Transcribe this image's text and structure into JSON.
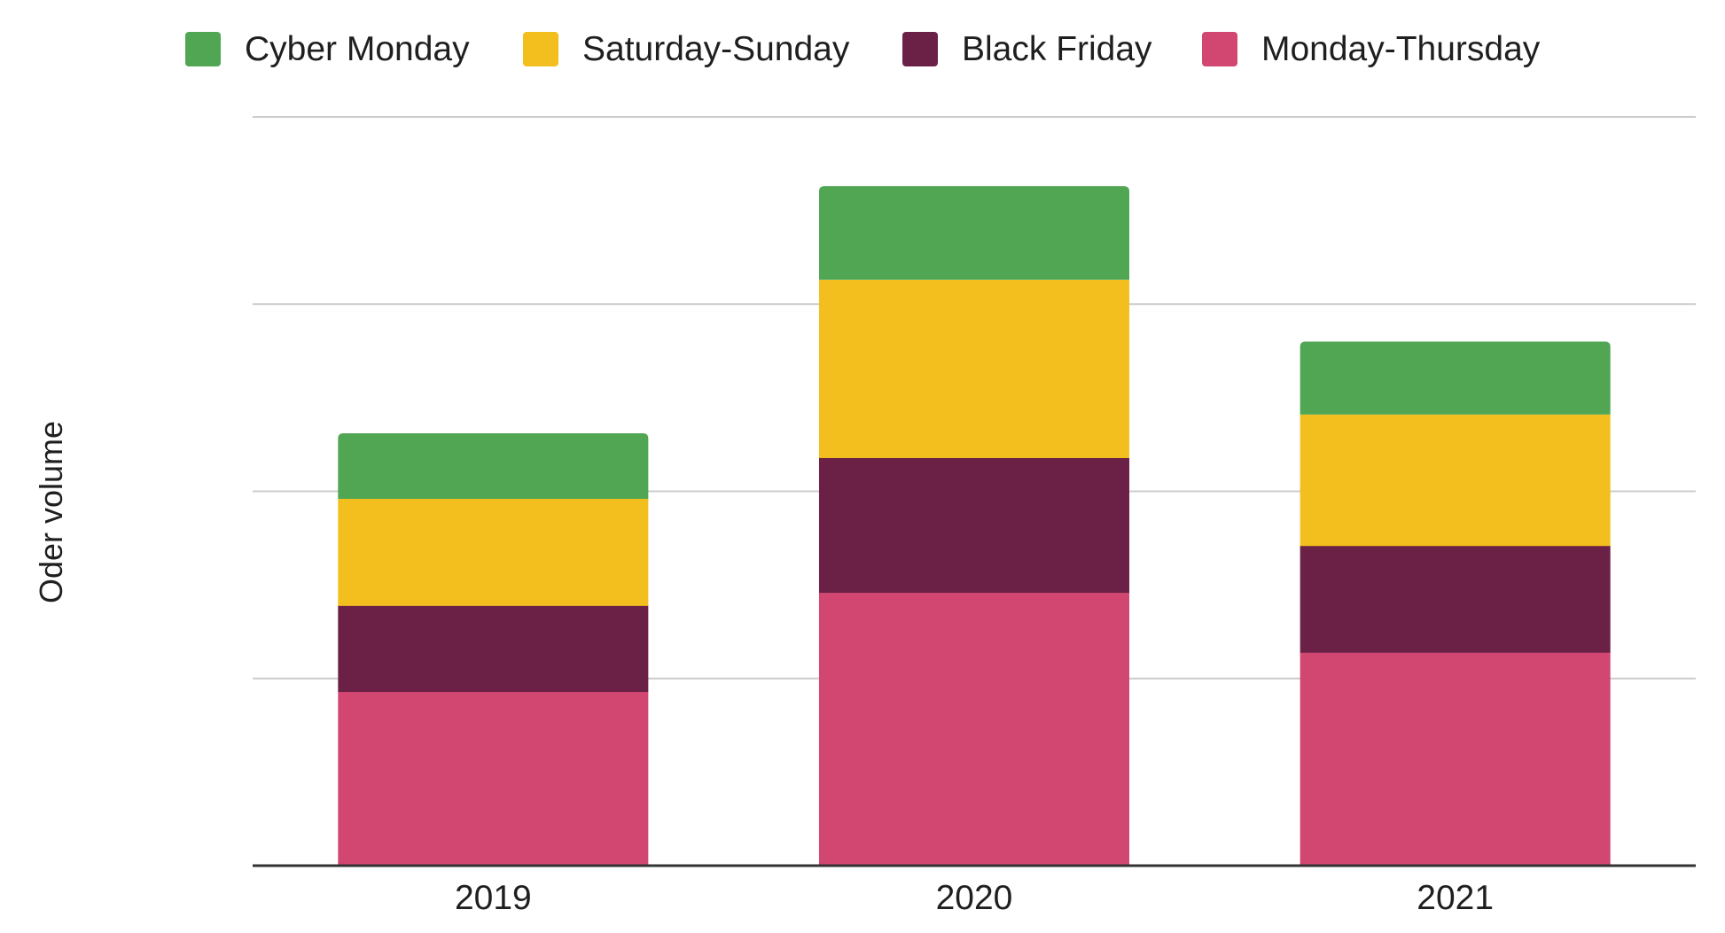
{
  "chart_data": {
    "type": "bar",
    "stacked": true,
    "title": "",
    "xlabel": "",
    "ylabel": "Oder volume",
    "categories": [
      "2019",
      "2020",
      "2021"
    ],
    "y_tick_labels_shown": false,
    "grid": true,
    "legend_position": "top",
    "ylim": [
      0,
      4
    ],
    "series": [
      {
        "name": "Monday-Thursday",
        "color": "#d14772",
        "values": [
          0.93,
          1.46,
          1.14
        ]
      },
      {
        "name": "Black Friday",
        "color": "#6b2146",
        "values": [
          0.46,
          0.72,
          0.57
        ]
      },
      {
        "name": "Saturday-Sunday",
        "color": "#f2bf1e",
        "values": [
          0.57,
          0.95,
          0.7
        ]
      },
      {
        "name": "Cyber Monday",
        "color": "#51a654",
        "values": [
          0.35,
          0.5,
          0.39
        ]
      }
    ],
    "legend_order": [
      "Cyber Monday",
      "Saturday-Sunday",
      "Black Friday",
      "Monday-Thursday"
    ]
  }
}
